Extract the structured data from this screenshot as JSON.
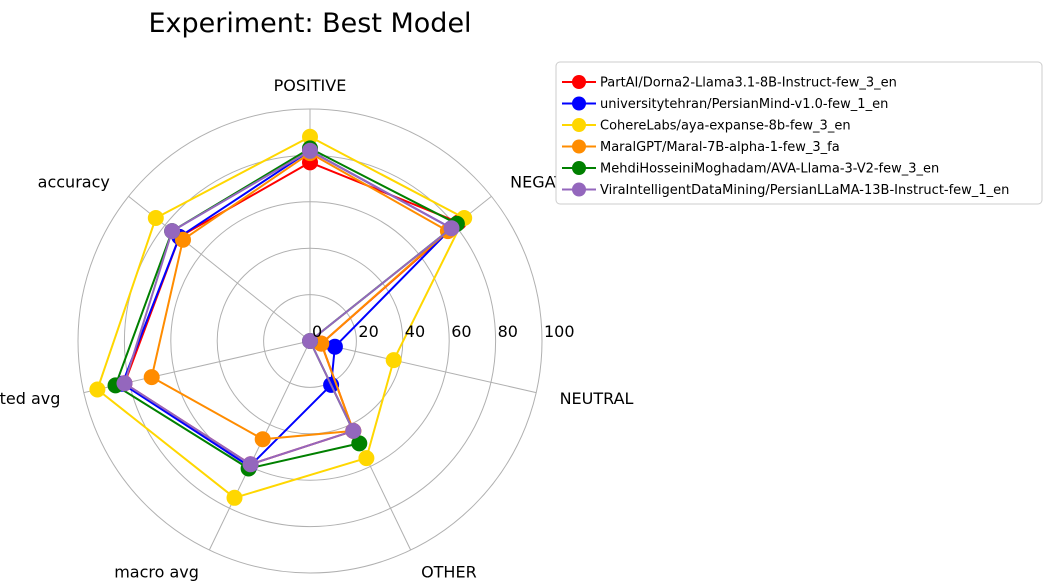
{
  "chart_data": {
    "type": "radar",
    "title": "Experiment: Best Model",
    "axes": [
      "POSITIVE",
      "NEGATIVE",
      "NEUTRAL",
      "OTHER",
      "macro avg",
      "weighted avg",
      "accuracy"
    ],
    "rlim": [
      0,
      100
    ],
    "rticks": [
      "0",
      "20",
      "40",
      "60",
      "80",
      "100"
    ],
    "grid": true,
    "legend_position": "outside-top-right",
    "series": [
      {
        "name": "PartAI/Dorna2-Llama3.1-8B-Instruct-few_3_en",
        "color": "#ff0000",
        "values": [
          77,
          82,
          5,
          43,
          59,
          82,
          72
        ]
      },
      {
        "name": "universitytehran/PersianMind-v1.0-few_1_en",
        "color": "#0000ff",
        "values": [
          82,
          78,
          11,
          21,
          60,
          83,
          72
        ]
      },
      {
        "name": "CohereLabs/aya-expanse-8b-few_3_en",
        "color": "#ffd700",
        "values": [
          88,
          85,
          37,
          56,
          75,
          94,
          85
        ]
      },
      {
        "name": "MaralGPT/Maral-7B-alpha-1-few_3_fa",
        "color": "#ff8c00",
        "values": [
          81,
          76,
          5,
          43,
          47,
          70,
          70
        ]
      },
      {
        "name": "MehdiHosseiniMoghadam/AVA-Llama-3-V2-few_3_en",
        "color": "#008000",
        "values": [
          83,
          81,
          0,
          49,
          61,
          86,
          76
        ]
      },
      {
        "name": "ViraIntelligentDataMining/PersianLLaMA-13B-Instruct-few_1_en",
        "color": "#9467bd",
        "values": [
          82,
          78,
          0,
          43,
          59,
          82,
          76
        ]
      }
    ]
  }
}
